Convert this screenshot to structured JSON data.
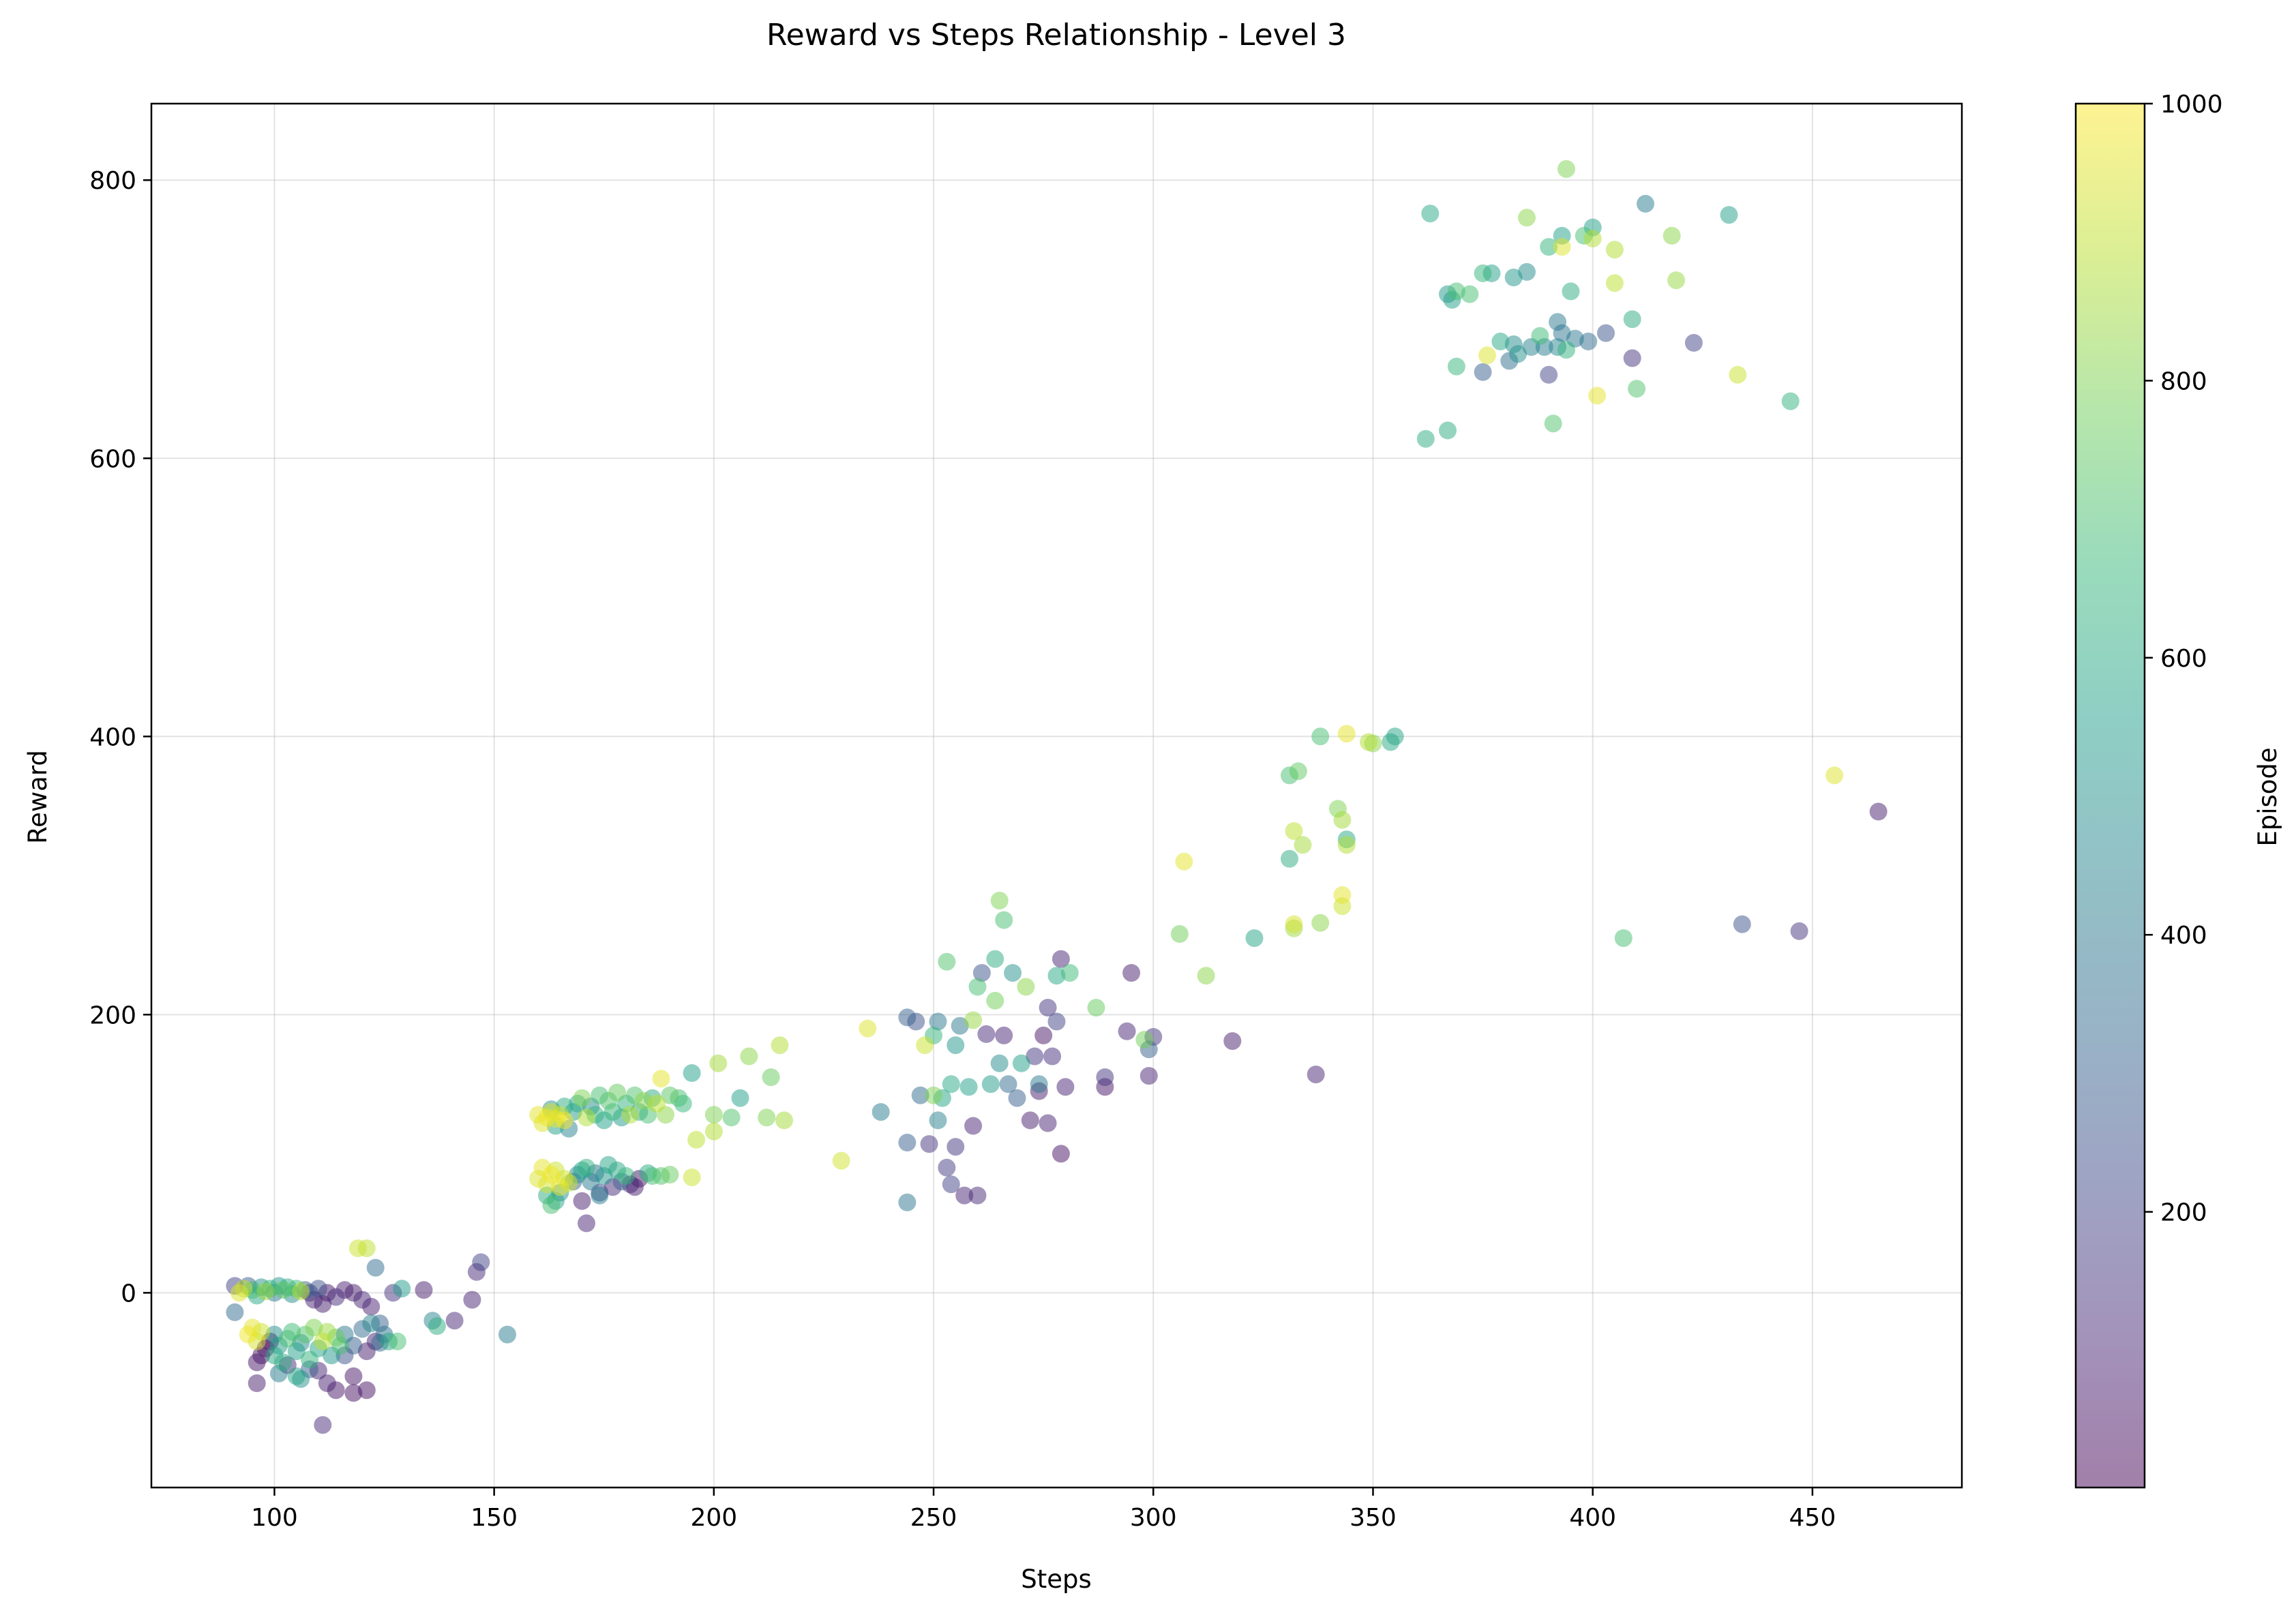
{
  "chart_data": {
    "type": "scatter",
    "title": "Reward vs Steps Relationship - Level 3",
    "xlabel": "Steps",
    "ylabel": "Reward",
    "xlim": [
      72,
      484
    ],
    "ylim": [
      -140,
      855
    ],
    "xticks": [
      100,
      150,
      200,
      250,
      300,
      350,
      400,
      450
    ],
    "yticks": [
      0,
      200,
      400,
      600,
      800
    ],
    "grid": true,
    "colorbar": {
      "label": "Episode",
      "colormap": "viridis",
      "range": [
        1,
        1000
      ],
      "ticks": [
        200,
        400,
        600,
        800,
        1000
      ],
      "alpha": 0.5
    },
    "colormap_stops": [
      "#440154",
      "#482878",
      "#3e4989",
      "#31688e",
      "#26828e",
      "#1f9e89",
      "#35b779",
      "#6ece58",
      "#b5de2b",
      "#fde725"
    ],
    "points": [
      [
        91,
        5,
        200
      ],
      [
        92,
        0,
        950
      ],
      [
        93,
        3,
        900
      ],
      [
        94,
        5,
        300
      ],
      [
        95,
        2,
        700
      ],
      [
        96,
        -2,
        600
      ],
      [
        97,
        4,
        500
      ],
      [
        98,
        1,
        850
      ],
      [
        99,
        3,
        650
      ],
      [
        100,
        0,
        400
      ],
      [
        101,
        5,
        550
      ],
      [
        102,
        2,
        750
      ],
      [
        103,
        4,
        620
      ],
      [
        104,
        -1,
        480
      ],
      [
        105,
        3,
        680
      ],
      [
        106,
        1,
        900
      ],
      [
        107,
        2,
        300
      ],
      [
        108,
        0,
        150
      ],
      [
        109,
        -5,
        100
      ],
      [
        110,
        3,
        250
      ],
      [
        111,
        -8,
        80
      ],
      [
        112,
        0,
        60
      ],
      [
        114,
        -3,
        120
      ],
      [
        116,
        2,
        90
      ],
      [
        91,
        -14,
        350
      ],
      [
        94,
        -30,
        980
      ],
      [
        95,
        -25,
        960
      ],
      [
        96,
        -35,
        940
      ],
      [
        97,
        -28,
        920
      ],
      [
        96,
        -50,
        60
      ],
      [
        97,
        -45,
        40
      ],
      [
        98,
        -40,
        30
      ],
      [
        99,
        -35,
        20
      ],
      [
        100,
        -30,
        500
      ],
      [
        100,
        -45,
        600
      ],
      [
        101,
        -38,
        550
      ],
      [
        102,
        -50,
        620
      ],
      [
        103,
        -33,
        700
      ],
      [
        104,
        -28,
        680
      ],
      [
        105,
        -42,
        560
      ],
      [
        106,
        -36,
        480
      ],
      [
        107,
        -30,
        720
      ],
      [
        108,
        -48,
        650
      ],
      [
        109,
        -25,
        800
      ],
      [
        110,
        -40,
        580
      ],
      [
        111,
        -35,
        900
      ],
      [
        112,
        -28,
        850
      ],
      [
        113,
        -45,
        520
      ],
      [
        114,
        -32,
        760
      ],
      [
        115,
        -38,
        700
      ],
      [
        116,
        -30,
        400
      ],
      [
        118,
        -38,
        300
      ],
      [
        120,
        -26,
        350
      ],
      [
        122,
        -22,
        450
      ],
      [
        96,
        -65,
        80
      ],
      [
        101,
        -58,
        420
      ],
      [
        103,
        -52,
        130
      ],
      [
        105,
        -60,
        580
      ],
      [
        106,
        -62,
        500
      ],
      [
        108,
        -55,
        300
      ],
      [
        110,
        -56,
        100
      ],
      [
        111,
        -95,
        120
      ],
      [
        112,
        -65,
        90
      ],
      [
        114,
        -70,
        60
      ],
      [
        116,
        -45,
        250
      ],
      [
        118,
        -72,
        40
      ],
      [
        118,
        -60,
        60
      ],
      [
        121,
        -70,
        50
      ],
      [
        121,
        -42,
        80
      ],
      [
        123,
        -35,
        100
      ],
      [
        124,
        -22,
        300
      ],
      [
        124,
        -36,
        350
      ],
      [
        125,
        -30,
        380
      ],
      [
        126,
        -35,
        600
      ],
      [
        127,
        0,
        150
      ],
      [
        128,
        -35,
        700
      ],
      [
        129,
        3,
        550
      ],
      [
        123,
        18,
        350
      ],
      [
        119,
        32,
        920
      ],
      [
        121,
        32,
        900
      ],
      [
        118,
        0,
        70
      ],
      [
        120,
        -5,
        110
      ],
      [
        122,
        -10,
        90
      ],
      [
        134,
        2,
        80
      ],
      [
        136,
        -20,
        450
      ],
      [
        137,
        -24,
        620
      ],
      [
        141,
        -20,
        110
      ],
      [
        145,
        -5,
        100
      ],
      [
        146,
        15,
        120
      ],
      [
        147,
        22,
        200
      ],
      [
        153,
        -30,
        420
      ],
      [
        160,
        82,
        950
      ],
      [
        161,
        90,
        960
      ],
      [
        162,
        78,
        940
      ],
      [
        163,
        85,
        980
      ],
      [
        164,
        88,
        920
      ],
      [
        165,
        76,
        970
      ],
      [
        166,
        82,
        930
      ],
      [
        167,
        79,
        910
      ],
      [
        162,
        70,
        620
      ],
      [
        163,
        63,
        700
      ],
      [
        164,
        66,
        580
      ],
      [
        165,
        72,
        500
      ],
      [
        168,
        80,
        300
      ],
      [
        169,
        85,
        480
      ],
      [
        170,
        88,
        560
      ],
      [
        171,
        90,
        640
      ],
      [
        172,
        80,
        420
      ],
      [
        173,
        86,
        360
      ],
      [
        174,
        72,
        200
      ],
      [
        175,
        84,
        520
      ],
      [
        176,
        92,
        580
      ],
      [
        177,
        76,
        120
      ],
      [
        178,
        88,
        600
      ],
      [
        179,
        80,
        300
      ],
      [
        180,
        84,
        660
      ],
      [
        181,
        78,
        100
      ],
      [
        182,
        76,
        80
      ],
      [
        183,
        82,
        60
      ],
      [
        185,
        86,
        600
      ],
      [
        186,
        84,
        700
      ],
      [
        188,
        84,
        720
      ],
      [
        190,
        85,
        760
      ],
      [
        195,
        83,
        920
      ],
      [
        171,
        50,
        100
      ],
      [
        170,
        66,
        80
      ],
      [
        174,
        70,
        420
      ],
      [
        160,
        128,
        960
      ],
      [
        161,
        122,
        950
      ],
      [
        162,
        126,
        980
      ],
      [
        163,
        130,
        940
      ],
      [
        164,
        125,
        970
      ],
      [
        165,
        128,
        920
      ],
      [
        166,
        124,
        990
      ],
      [
        163,
        132,
        500
      ],
      [
        164,
        120,
        560
      ],
      [
        166,
        134,
        620
      ],
      [
        167,
        118,
        440
      ],
      [
        168,
        130,
        540
      ],
      [
        169,
        136,
        600
      ],
      [
        170,
        140,
        800
      ],
      [
        171,
        126,
        880
      ],
      [
        172,
        134,
        480
      ],
      [
        173,
        128,
        640
      ],
      [
        174,
        142,
        700
      ],
      [
        175,
        124,
        560
      ],
      [
        176,
        138,
        720
      ],
      [
        177,
        130,
        660
      ],
      [
        178,
        144,
        760
      ],
      [
        179,
        126,
        540
      ],
      [
        180,
        136,
        640
      ],
      [
        181,
        128,
        880
      ],
      [
        182,
        142,
        720
      ],
      [
        183,
        130,
        600
      ],
      [
        184,
        138,
        820
      ],
      [
        185,
        128,
        700
      ],
      [
        186,
        140,
        620
      ],
      [
        187,
        136,
        900
      ],
      [
        188,
        154,
        960
      ],
      [
        189,
        128,
        820
      ],
      [
        190,
        142,
        740
      ],
      [
        192,
        140,
        700
      ],
      [
        193,
        136,
        660
      ],
      [
        195,
        158,
        560
      ],
      [
        196,
        110,
        900
      ],
      [
        200,
        116,
        880
      ],
      [
        201,
        165,
        860
      ],
      [
        200,
        128,
        800
      ],
      [
        204,
        126,
        720
      ],
      [
        206,
        140,
        560
      ],
      [
        208,
        170,
        820
      ],
      [
        212,
        126,
        800
      ],
      [
        213,
        155,
        760
      ],
      [
        215,
        178,
        880
      ],
      [
        216,
        124,
        860
      ],
      [
        229,
        95,
        930
      ],
      [
        235,
        190,
        950
      ],
      [
        238,
        130,
        420
      ],
      [
        244,
        65,
        380
      ],
      [
        244,
        108,
        300
      ],
      [
        244,
        198,
        300
      ],
      [
        246,
        195,
        250
      ],
      [
        247,
        142,
        350
      ],
      [
        248,
        178,
        920
      ],
      [
        249,
        107,
        150
      ],
      [
        250,
        142,
        800
      ],
      [
        250,
        185,
        650
      ],
      [
        251,
        124,
        440
      ],
      [
        251,
        195,
        400
      ],
      [
        252,
        140,
        580
      ],
      [
        253,
        90,
        180
      ],
      [
        253,
        238,
        720
      ],
      [
        254,
        78,
        200
      ],
      [
        254,
        150,
        600
      ],
      [
        255,
        105,
        160
      ],
      [
        255,
        178,
        520
      ],
      [
        256,
        192,
        400
      ],
      [
        257,
        70,
        100
      ],
      [
        258,
        148,
        560
      ],
      [
        259,
        196,
        840
      ],
      [
        259,
        120,
        100
      ],
      [
        260,
        220,
        700
      ],
      [
        260,
        70,
        120
      ],
      [
        261,
        230,
        250
      ],
      [
        262,
        186,
        120
      ],
      [
        263,
        150,
        540
      ],
      [
        264,
        210,
        780
      ],
      [
        264,
        240,
        620
      ],
      [
        265,
        165,
        480
      ],
      [
        265,
        282,
        800
      ],
      [
        266,
        268,
        700
      ],
      [
        266,
        185,
        100
      ],
      [
        267,
        150,
        350
      ],
      [
        268,
        230,
        500
      ],
      [
        269,
        140,
        300
      ],
      [
        270,
        165,
        560
      ],
      [
        271,
        220,
        820
      ],
      [
        272,
        124,
        80
      ],
      [
        273,
        170,
        160
      ],
      [
        274,
        150,
        400
      ],
      [
        274,
        145,
        80
      ],
      [
        275,
        185,
        60
      ],
      [
        276,
        122,
        100
      ],
      [
        276,
        205,
        150
      ],
      [
        277,
        170,
        130
      ],
      [
        278,
        228,
        600
      ],
      [
        278,
        195,
        200
      ],
      [
        279,
        100,
        40
      ],
      [
        279,
        240,
        100
      ],
      [
        280,
        148,
        100
      ],
      [
        281,
        230,
        680
      ],
      [
        287,
        205,
        760
      ],
      [
        289,
        148,
        60
      ],
      [
        289,
        155,
        150
      ],
      [
        294,
        188,
        100
      ],
      [
        295,
        230,
        80
      ],
      [
        298,
        182,
        780
      ],
      [
        299,
        175,
        300
      ],
      [
        299,
        156,
        100
      ],
      [
        300,
        184,
        150
      ],
      [
        306,
        258,
        780
      ],
      [
        307,
        310,
        960
      ],
      [
        312,
        228,
        820
      ],
      [
        318,
        181,
        80
      ],
      [
        323,
        255,
        580
      ],
      [
        331,
        372,
        700
      ],
      [
        331,
        312,
        620
      ],
      [
        332,
        265,
        940
      ],
      [
        332,
        262,
        850
      ],
      [
        332,
        332,
        900
      ],
      [
        333,
        375,
        750
      ],
      [
        334,
        322,
        860
      ],
      [
        337,
        157,
        100
      ],
      [
        338,
        400,
        700
      ],
      [
        338,
        266,
        820
      ],
      [
        342,
        348,
        800
      ],
      [
        343,
        340,
        860
      ],
      [
        343,
        286,
        960
      ],
      [
        343,
        278,
        920
      ],
      [
        344,
        402,
        960
      ],
      [
        344,
        322,
        880
      ],
      [
        344,
        326,
        600
      ],
      [
        349,
        396,
        880
      ],
      [
        350,
        395,
        820
      ],
      [
        354,
        396,
        600
      ],
      [
        355,
        400,
        580
      ],
      [
        407,
        255,
        700
      ],
      [
        434,
        265,
        250
      ],
      [
        447,
        260,
        150
      ],
      [
        455,
        372,
        950
      ],
      [
        465,
        346,
        80
      ],
      [
        362,
        614,
        620
      ],
      [
        363,
        776,
        600
      ],
      [
        367,
        620,
        620
      ],
      [
        367,
        718,
        520
      ],
      [
        368,
        714,
        560
      ],
      [
        369,
        720,
        700
      ],
      [
        369,
        666,
        660
      ],
      [
        372,
        718,
        700
      ],
      [
        375,
        662,
        300
      ],
      [
        375,
        733,
        650
      ],
      [
        376,
        674,
        950
      ],
      [
        377,
        733,
        560
      ],
      [
        379,
        684,
        600
      ],
      [
        381,
        670,
        360
      ],
      [
        382,
        730,
        520
      ],
      [
        382,
        682,
        480
      ],
      [
        383,
        675,
        500
      ],
      [
        385,
        734,
        480
      ],
      [
        385,
        773,
        820
      ],
      [
        386,
        680,
        440
      ],
      [
        388,
        688,
        680
      ],
      [
        389,
        680,
        420
      ],
      [
        390,
        660,
        200
      ],
      [
        390,
        752,
        650
      ],
      [
        391,
        625,
        720
      ],
      [
        392,
        698,
        400
      ],
      [
        392,
        680,
        460
      ],
      [
        393,
        760,
        560
      ],
      [
        393,
        690,
        380
      ],
      [
        393,
        752,
        950
      ],
      [
        394,
        808,
        800
      ],
      [
        394,
        678,
        640
      ],
      [
        395,
        720,
        620
      ],
      [
        396,
        686,
        400
      ],
      [
        398,
        760,
        700
      ],
      [
        399,
        684,
        350
      ],
      [
        400,
        766,
        560
      ],
      [
        400,
        758,
        880
      ],
      [
        401,
        645,
        960
      ],
      [
        403,
        690,
        250
      ],
      [
        405,
        726,
        900
      ],
      [
        405,
        750,
        880
      ],
      [
        409,
        672,
        150
      ],
      [
        409,
        700,
        620
      ],
      [
        410,
        650,
        720
      ],
      [
        412,
        783,
        420
      ],
      [
        418,
        760,
        820
      ],
      [
        419,
        728,
        840
      ],
      [
        423,
        683,
        200
      ],
      [
        431,
        775,
        560
      ],
      [
        433,
        660,
        920
      ],
      [
        445,
        641,
        640
      ]
    ]
  }
}
